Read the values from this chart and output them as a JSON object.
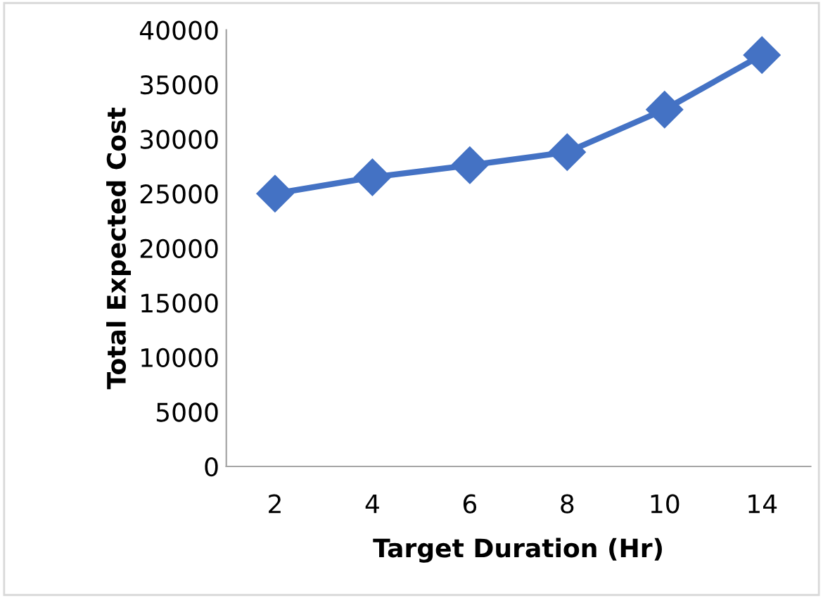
{
  "chart_data": {
    "type": "line",
    "xlabel": "Target Duration (Hr)",
    "ylabel": "Total Expected Cost",
    "categories": [
      "2",
      "4",
      "6",
      "8",
      "10",
      "14"
    ],
    "series": [
      {
        "color": "#4472c4",
        "values": [
          25000,
          26500,
          27600,
          28800,
          32700,
          37700
        ]
      }
    ],
    "ylim": [
      0,
      40000
    ],
    "yticks": [
      0,
      5000,
      10000,
      15000,
      20000,
      25000,
      30000,
      35000,
      40000
    ],
    "grid": false,
    "marker": "diamond",
    "line_style": "solid"
  }
}
